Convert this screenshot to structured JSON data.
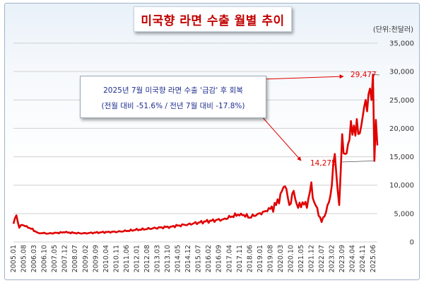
{
  "title": "미국향 라면 수출 월별 추이",
  "unit": "(단위:천달러)",
  "annotation": {
    "line1": "2025년 7월 미국향 라면 수출 '급감' 후 회복",
    "line2": "(전월 대비 -51.6% / 전년 7월 대비 -17.8%)"
  },
  "colors": {
    "line": "#e00000",
    "annotation_text": "#1f2f8f",
    "title": "#c00000"
  },
  "chart_data": {
    "type": "line",
    "title": "미국향 라면 수출 월별 추이",
    "ylabel": "(단위:천달러)",
    "xlabel": "",
    "ylim": [
      0,
      35000
    ],
    "yticks": [
      0,
      5000,
      10000,
      15000,
      20000,
      25000,
      30000,
      35000
    ],
    "ytick_labels": [
      "0",
      "5,000",
      "10,000",
      "15,000",
      "20,000",
      "25,000",
      "30,000",
      "35,000"
    ],
    "x_start": "2005.01",
    "x_end": "2025.09",
    "xtick_labels": [
      "2005.01",
      "2005.08",
      "2006.03",
      "2006.10",
      "2007.05",
      "2007.12",
      "2008.07",
      "2009.02",
      "2009.09",
      "2010.04",
      "2010.11",
      "2011.06",
      "2012.01",
      "2012.08",
      "2013.03",
      "2013.10",
      "2014.05",
      "2014.12",
      "2015.07",
      "2016.02",
      "2016.09",
      "2017.04",
      "2017.11",
      "2018.06",
      "2019.01",
      "2019.08",
      "2020.03",
      "2020.10",
      "2021.05",
      "2021.12",
      "2022.07",
      "2023.02",
      "2023.09",
      "2024.04",
      "2024.11",
      "2025.06"
    ],
    "grid": true,
    "anchors": [
      [
        "2005.01",
        3200
      ],
      [
        "2005.03",
        4700
      ],
      [
        "2005.05",
        2500
      ],
      [
        "2005.07",
        3000
      ],
      [
        "2005.10",
        2800
      ],
      [
        "2006.01",
        2300
      ],
      [
        "2006.06",
        1600
      ],
      [
        "2007.01",
        1500
      ],
      [
        "2007.12",
        1700
      ],
      [
        "2008.12",
        1500
      ],
      [
        "2009.12",
        1700
      ],
      [
        "2010.12",
        1800
      ],
      [
        "2011.12",
        2100
      ],
      [
        "2012.12",
        2400
      ],
      [
        "2013.12",
        2700
      ],
      [
        "2014.12",
        3100
      ],
      [
        "2015.12",
        3600
      ],
      [
        "2016.12",
        4000
      ],
      [
        "2017.06",
        4500
      ],
      [
        "2017.12",
        5000
      ],
      [
        "2018.06",
        4300
      ],
      [
        "2018.12",
        5000
      ],
      [
        "2019.06",
        5400
      ],
      [
        "2019.12",
        6500
      ],
      [
        "2020.03",
        8500
      ],
      [
        "2020.06",
        9800
      ],
      [
        "2020.09",
        6500
      ],
      [
        "2020.12",
        9000
      ],
      [
        "2021.03",
        6000
      ],
      [
        "2021.06",
        7000
      ],
      [
        "2021.09",
        6000
      ],
      [
        "2021.12",
        10500
      ],
      [
        "2022.02",
        7000
      ],
      [
        "2022.04",
        6000
      ],
      [
        "2022.07",
        3500
      ],
      [
        "2022.09",
        4500
      ],
      [
        "2022.12",
        7000
      ],
      [
        "2023.02",
        10000
      ],
      [
        "2023.04",
        15500
      ],
      [
        "2023.06",
        9000
      ],
      [
        "2023.07",
        6500
      ],
      [
        "2023.09",
        19000
      ],
      [
        "2023.11",
        15500
      ],
      [
        "2024.02",
        18000
      ],
      [
        "2024.05",
        20500
      ],
      [
        "2024.08",
        19000
      ],
      [
        "2024.11",
        22000
      ],
      [
        "2025.01",
        25000
      ],
      [
        "2025.02",
        23000
      ],
      [
        "2025.04",
        27000
      ],
      [
        "2025.06",
        29477
      ],
      [
        "2025.07",
        14275
      ],
      [
        "2025.08",
        21500
      ],
      [
        "2025.09",
        17000
      ]
    ],
    "callouts": [
      {
        "label": "29,477",
        "date": "2025.06",
        "value": 29477
      },
      {
        "label": "14,275",
        "date": "2025.07",
        "value": 14275
      }
    ]
  }
}
